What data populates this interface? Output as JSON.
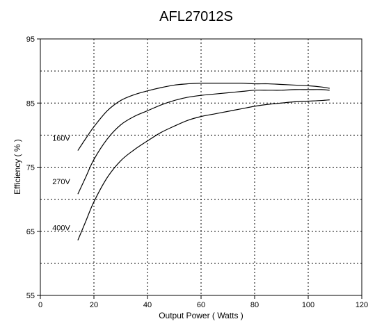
{
  "chart_data": {
    "type": "line",
    "title": "AFL27012S",
    "xlabel": "Output Power ( Watts )",
    "ylabel": "Efficiency ( % )",
    "xlim": [
      0,
      120
    ],
    "ylim": [
      55,
      95
    ],
    "x_ticks": [
      0,
      20,
      40,
      60,
      80,
      100,
      120
    ],
    "y_ticks": [
      55,
      65,
      75,
      85,
      95
    ],
    "x_grid": [
      20,
      40,
      60,
      80,
      100
    ],
    "y_grid": [
      60,
      65,
      70,
      75,
      80,
      85,
      90
    ],
    "grid": true,
    "series": [
      {
        "name": "160V",
        "x": [
          14,
          17,
          20,
          25,
          30,
          35,
          40,
          45,
          50,
          55,
          60,
          65,
          70,
          75,
          80,
          85,
          90,
          95,
          100,
          105,
          108
        ],
        "y": [
          77.6,
          79.5,
          81.3,
          83.8,
          85.4,
          86.3,
          86.9,
          87.4,
          87.8,
          88.0,
          88.1,
          88.1,
          88.1,
          88.1,
          88.0,
          88.0,
          87.9,
          87.8,
          87.7,
          87.5,
          87.3
        ]
      },
      {
        "name": "270V",
        "x": [
          14,
          17,
          20,
          25,
          30,
          35,
          40,
          45,
          50,
          55,
          60,
          65,
          70,
          75,
          80,
          85,
          90,
          95,
          100,
          105,
          108
        ],
        "y": [
          70.8,
          73.5,
          76.2,
          79.4,
          81.6,
          82.9,
          83.8,
          84.7,
          85.4,
          85.9,
          86.2,
          86.4,
          86.6,
          86.8,
          87.0,
          87.0,
          87.0,
          87.1,
          87.1,
          87.1,
          87.0
        ]
      },
      {
        "name": "400V",
        "x": [
          14,
          17,
          20,
          25,
          30,
          35,
          40,
          45,
          50,
          55,
          60,
          65,
          70,
          75,
          80,
          85,
          90,
          95,
          100,
          105,
          108
        ],
        "y": [
          63.6,
          66.6,
          69.6,
          73.4,
          76.0,
          77.7,
          79.1,
          80.4,
          81.4,
          82.3,
          82.9,
          83.3,
          83.7,
          84.1,
          84.5,
          84.8,
          85.0,
          85.2,
          85.3,
          85.4,
          85.5
        ]
      }
    ]
  }
}
